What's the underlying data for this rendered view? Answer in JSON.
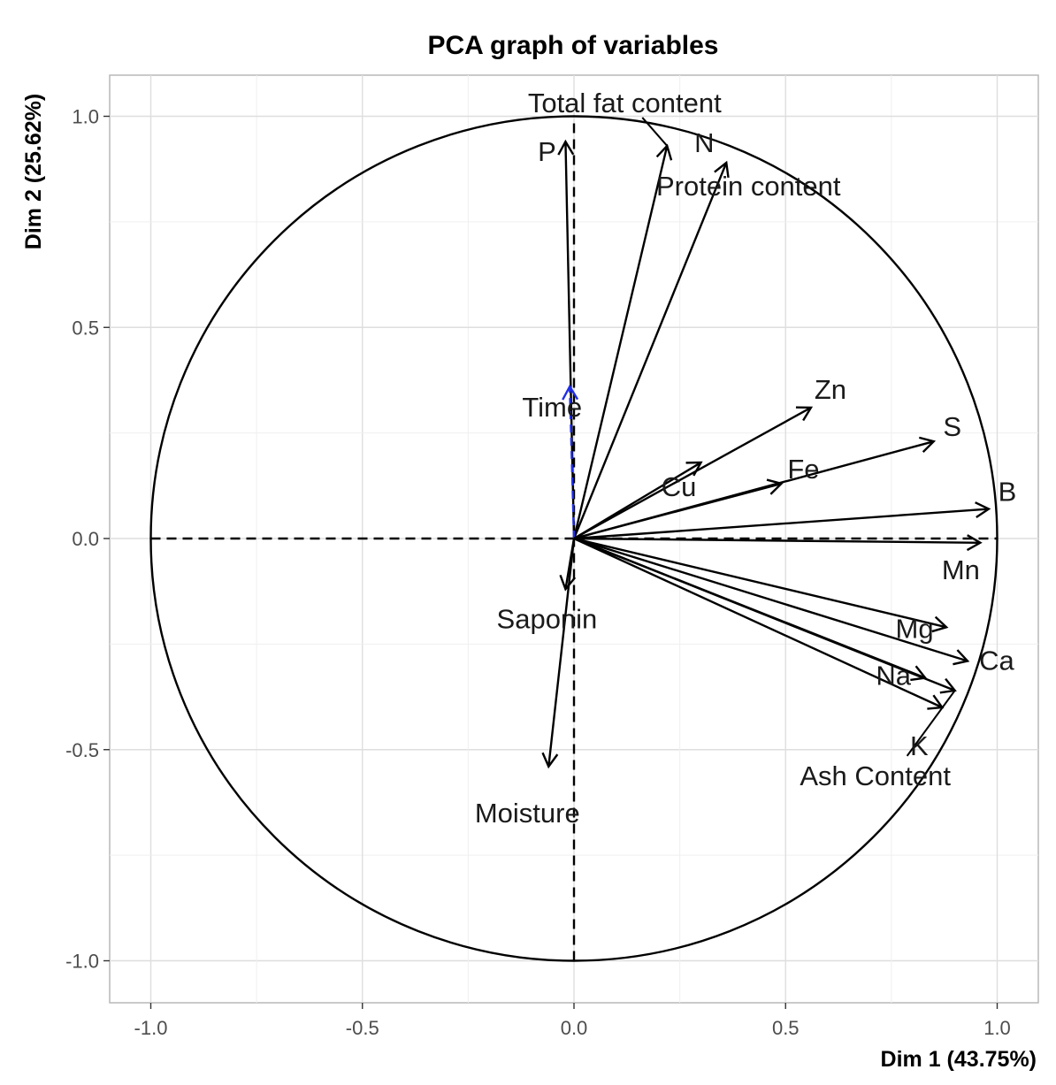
{
  "chart_data": {
    "type": "scatter",
    "subtype": "pca-correlation-circle",
    "title": "PCA graph of variables",
    "xlabel": "Dim 1 (43.75%)",
    "ylabel": "Dim 2 (25.62%)",
    "xlim": [
      -1.1,
      1.1
    ],
    "ylim": [
      -1.1,
      1.1
    ],
    "x_ticks": [
      -1.0,
      -0.5,
      0.0,
      0.5,
      1.0
    ],
    "x_tick_labels": [
      "-1.0",
      "-0.5",
      "0.0",
      "0.5",
      "1.0"
    ],
    "y_ticks": [
      -1.0,
      -0.5,
      0.0,
      0.5,
      1.0
    ],
    "y_tick_labels": [
      "-1.0",
      "-0.5",
      "0.0",
      "0.5",
      "1.0"
    ],
    "grid": true,
    "unit_circle": true,
    "variables": [
      {
        "name": "Total fat content",
        "x": 0.22,
        "y": 0.93,
        "color": "#000000",
        "supplementary": false
      },
      {
        "name": "N",
        "x": 0.36,
        "y": 0.89,
        "color": "#000000",
        "supplementary": false
      },
      {
        "name": "Protein content",
        "x": 0.36,
        "y": 0.89,
        "color": "#000000",
        "supplementary": false
      },
      {
        "name": "P",
        "x": -0.02,
        "y": 0.94,
        "color": "#000000",
        "supplementary": false
      },
      {
        "name": "Time",
        "x": -0.01,
        "y": 0.36,
        "color": "#1f2ee6",
        "supplementary": true
      },
      {
        "name": "Zn",
        "x": 0.56,
        "y": 0.31,
        "color": "#000000",
        "supplementary": false
      },
      {
        "name": "S",
        "x": 0.85,
        "y": 0.23,
        "color": "#000000",
        "supplementary": false
      },
      {
        "name": "Cu",
        "x": 0.3,
        "y": 0.18,
        "color": "#000000",
        "supplementary": false
      },
      {
        "name": "Fe",
        "x": 0.49,
        "y": 0.13,
        "color": "#000000",
        "supplementary": false
      },
      {
        "name": "B",
        "x": 0.98,
        "y": 0.07,
        "color": "#000000",
        "supplementary": false
      },
      {
        "name": "Mn",
        "x": 0.96,
        "y": -0.01,
        "color": "#000000",
        "supplementary": false
      },
      {
        "name": "Mg",
        "x": 0.88,
        "y": -0.21,
        "color": "#000000",
        "supplementary": false
      },
      {
        "name": "Ca",
        "x": 0.93,
        "y": -0.29,
        "color": "#000000",
        "supplementary": false
      },
      {
        "name": "Na",
        "x": 0.83,
        "y": -0.33,
        "color": "#000000",
        "supplementary": false
      },
      {
        "name": "Ash Content",
        "x": 0.9,
        "y": -0.36,
        "color": "#000000",
        "supplementary": false
      },
      {
        "name": "K",
        "x": 0.87,
        "y": -0.4,
        "color": "#000000",
        "supplementary": false
      },
      {
        "name": "Saponin",
        "x": -0.02,
        "y": -0.12,
        "color": "#000000",
        "supplementary": false
      },
      {
        "name": "Moisture",
        "x": -0.06,
        "y": -0.54,
        "color": "#000000",
        "supplementary": false
      }
    ]
  }
}
